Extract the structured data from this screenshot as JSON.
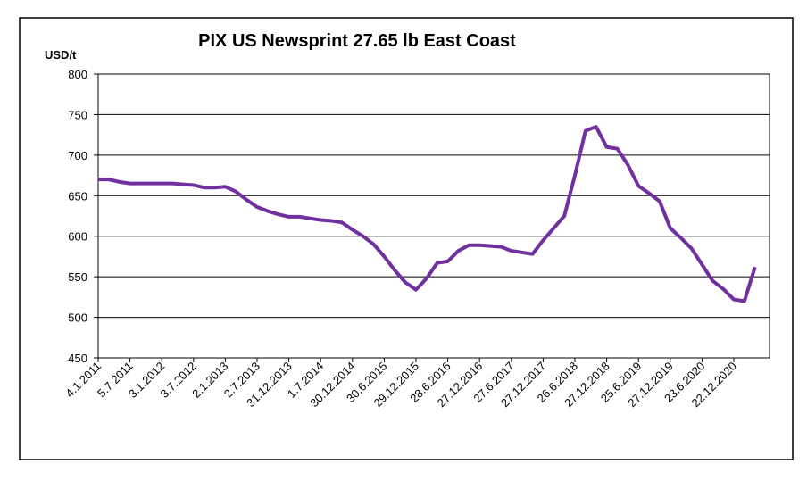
{
  "chart_data": {
    "type": "line",
    "title": "PIX US Newsprint 27.65 lb East Coast",
    "y_label": "USD/t",
    "categories": [
      "4.1.2011",
      null,
      null,
      "5.7.2011",
      null,
      null,
      "3.1.2012",
      null,
      null,
      "3.7.2012",
      null,
      null,
      "2.1.2013",
      null,
      null,
      "2.7.2013",
      null,
      null,
      "31.12.2013",
      null,
      null,
      "1.7.2014",
      null,
      null,
      "30.12.2014",
      null,
      null,
      "30.6.2015",
      null,
      null,
      "29.12.2015",
      null,
      null,
      "28.6.2016",
      null,
      null,
      "27.12.2016",
      null,
      null,
      "27.6.2017",
      null,
      null,
      "27.12.2017",
      null,
      null,
      "26.6.2018",
      null,
      null,
      "27.12.2018",
      null,
      null,
      "25.6.2019",
      null,
      null,
      "27.12.2019",
      null,
      null,
      "23.6.2020",
      null,
      null,
      "22.12.2020",
      null,
      null
    ],
    "series": [
      {
        "name": "PIX US Newsprint",
        "color": "#7030a0",
        "values": [
          670,
          670,
          667,
          665,
          665,
          665,
          665,
          665,
          664,
          663,
          660,
          660,
          661,
          655,
          645,
          636,
          631,
          627,
          624,
          624,
          622,
          620,
          619,
          617,
          608,
          600,
          590,
          575,
          558,
          543,
          534,
          548,
          567,
          569,
          582,
          589,
          589,
          588,
          587,
          582,
          580,
          578,
          595,
          610,
          625,
          675,
          730,
          735,
          710,
          708,
          688,
          662,
          653,
          643,
          610,
          598,
          585,
          565,
          545,
          535,
          522,
          520,
          562
        ]
      }
    ],
    "ylim": [
      450,
      800
    ],
    "yticks": [
      450,
      500,
      550,
      600,
      650,
      700,
      750,
      800
    ],
    "grid": true
  }
}
